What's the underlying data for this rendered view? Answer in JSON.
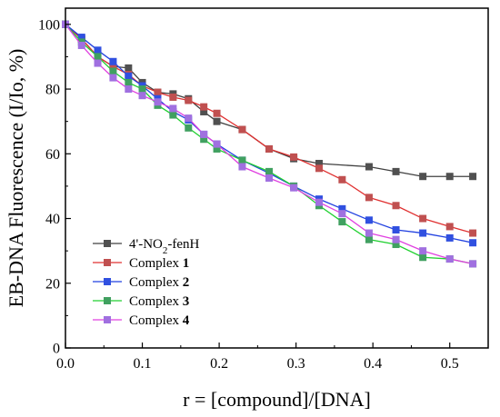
{
  "chart_data": {
    "type": "line",
    "title": "",
    "xlabel": "r = [compound]/[DNA]",
    "ylabel": "EB-DNA Fluorescence (I/Io, %)",
    "xlim": [
      0.0,
      0.55
    ],
    "ylim": [
      0,
      105
    ],
    "xticks": [
      "0.0",
      "0.1",
      "0.2",
      "0.3",
      "0.4",
      "0.5"
    ],
    "xtick_values": [
      0.0,
      0.1,
      0.2,
      0.3,
      0.4,
      0.5
    ],
    "yticks": [
      "0",
      "20",
      "40",
      "60",
      "80",
      "100"
    ],
    "ytick_values": [
      0,
      20,
      40,
      60,
      80,
      100
    ],
    "grid": false,
    "legend_position": "bottom-left",
    "series": [
      {
        "name": "4'-NO₂-fenH",
        "legend_parts": [
          {
            "text": "4'-NO",
            "sub": false
          },
          {
            "text": "2",
            "sub": true
          },
          {
            "text": "-fenH",
            "sub": false
          }
        ],
        "color": "#404040",
        "marker_color": "#505050",
        "x": [
          0.0,
          0.021,
          0.042,
          0.062,
          0.082,
          0.1,
          0.12,
          0.14,
          0.16,
          0.18,
          0.197,
          0.23,
          0.265,
          0.297,
          0.33,
          0.395,
          0.43,
          0.465,
          0.5,
          0.53
        ],
        "y": [
          100,
          95.5,
          90,
          87,
          86.5,
          82,
          79,
          78.5,
          77,
          73,
          70,
          67.5,
          61.5,
          58.5,
          57,
          56,
          54.5,
          53,
          53,
          53
        ]
      },
      {
        "name": "Complex 1",
        "legend_parts": [
          {
            "text": "Complex ",
            "sub": false
          },
          {
            "text": "1",
            "sub": false,
            "bold": true
          }
        ],
        "color": "#e03030",
        "marker_color": "#c05050",
        "x": [
          0.0,
          0.021,
          0.042,
          0.062,
          0.082,
          0.1,
          0.12,
          0.14,
          0.16,
          0.18,
          0.197,
          0.23,
          0.265,
          0.297,
          0.33,
          0.36,
          0.395,
          0.43,
          0.465,
          0.5,
          0.53
        ],
        "y": [
          100,
          95.5,
          90,
          87,
          84.5,
          81,
          79,
          77.5,
          76.5,
          74.5,
          72.5,
          67.5,
          61.5,
          59,
          55.5,
          52,
          46.5,
          44,
          40,
          37.5,
          35.5
        ]
      },
      {
        "name": "Complex 2",
        "legend_parts": [
          {
            "text": "Complex ",
            "sub": false
          },
          {
            "text": "2",
            "sub": false,
            "bold": true
          }
        ],
        "color": "#2040e0",
        "marker_color": "#3050e0",
        "x": [
          0.0,
          0.021,
          0.042,
          0.062,
          0.082,
          0.1,
          0.12,
          0.14,
          0.16,
          0.18,
          0.197,
          0.23,
          0.265,
          0.297,
          0.33,
          0.36,
          0.395,
          0.43,
          0.465,
          0.5,
          0.53
        ],
        "y": [
          100,
          96,
          92,
          88.5,
          84,
          81,
          77,
          73,
          70.5,
          66,
          63,
          58,
          54,
          50,
          46,
          43,
          39.5,
          36.5,
          35.5,
          34,
          32.5
        ]
      },
      {
        "name": "Complex 3",
        "legend_parts": [
          {
            "text": "Complex ",
            "sub": false
          },
          {
            "text": "3",
            "sub": false,
            "bold": true
          }
        ],
        "color": "#20d030",
        "marker_color": "#40a060",
        "x": [
          0.0,
          0.021,
          0.042,
          0.062,
          0.082,
          0.1,
          0.12,
          0.14,
          0.16,
          0.18,
          0.197,
          0.23,
          0.265,
          0.297,
          0.33,
          0.36,
          0.395,
          0.43,
          0.465,
          0.5,
          0.53
        ],
        "y": [
          100,
          94.5,
          90,
          85.5,
          82,
          80,
          75,
          72,
          68,
          64.5,
          61.5,
          58,
          54.5,
          50,
          44,
          39,
          33.5,
          32,
          28,
          27.5,
          26
        ]
      },
      {
        "name": "Complex 4",
        "legend_parts": [
          {
            "text": "Complex ",
            "sub": false
          },
          {
            "text": "4",
            "sub": false,
            "bold": true
          }
        ],
        "color": "#e040e0",
        "marker_color": "#a070e0",
        "x": [
          0.0,
          0.021,
          0.042,
          0.062,
          0.082,
          0.1,
          0.12,
          0.14,
          0.16,
          0.18,
          0.197,
          0.23,
          0.265,
          0.297,
          0.33,
          0.36,
          0.395,
          0.43,
          0.465,
          0.5,
          0.53
        ],
        "y": [
          100,
          93.5,
          88,
          83.5,
          80,
          78,
          76,
          74,
          71,
          66,
          63,
          56,
          52.5,
          49.5,
          45,
          41.5,
          35.5,
          33.5,
          30,
          27.5,
          26
        ]
      }
    ]
  }
}
